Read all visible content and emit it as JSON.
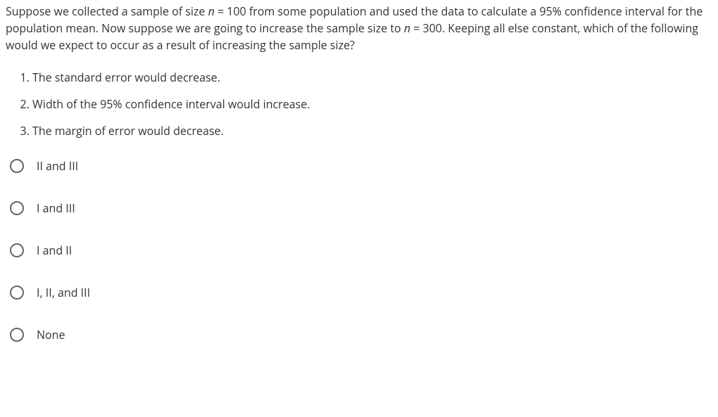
{
  "question": {
    "stem_parts": [
      {
        "text": "Suppose we collected a sample of size ",
        "italic": false
      },
      {
        "text": "n",
        "italic": true
      },
      {
        "text": " = 100 from some population and used the data to calculate a 95% confidence interval for the population mean. Now suppose we are going to increase the sample size to ",
        "italic": false
      },
      {
        "text": "n",
        "italic": true
      },
      {
        "text": " = 300. Keeping all else constant, which of the following would we expect to occur as a result of increasing the sample size?",
        "italic": false
      }
    ],
    "statements": [
      "The standard error would decrease.",
      "Width of the 95% confidence interval would increase.",
      "The margin of error would decrease."
    ],
    "options": [
      "II and III",
      "I and III",
      "I and II",
      "I, II, and III",
      "None"
    ]
  },
  "styles": {
    "text_color": "#333333",
    "background_color": "#ffffff",
    "radio_border_color": "#666666",
    "font_size_pt": 12,
    "line_height": 1.5
  }
}
